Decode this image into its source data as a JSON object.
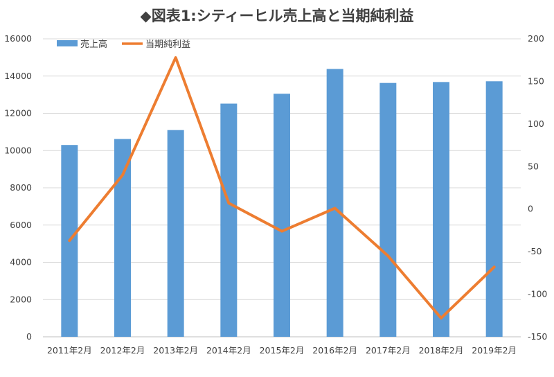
{
  "chart_data": {
    "type": "bar",
    "title": "◆図表1:シティーヒル売上高と当期純利益",
    "categories": [
      "2011年2月",
      "2012年2月",
      "2013年2月",
      "2014年2月",
      "2015年2月",
      "2016年2月",
      "2017年2月",
      "2018年2月",
      "2019年2月"
    ],
    "series": [
      {
        "name": "売上高",
        "type": "bar",
        "axis": "left",
        "color": "#5b9bd5",
        "values": [
          10300,
          10620,
          11100,
          12520,
          13050,
          14380,
          13630,
          13680,
          13720
        ]
      },
      {
        "name": "当期純利益",
        "type": "line",
        "axis": "right",
        "color": "#ed7d31",
        "values": [
          -37,
          40,
          178,
          7,
          -26,
          1,
          -55,
          -128,
          -68
        ]
      }
    ],
    "y_left": {
      "min": 0,
      "max": 16000,
      "step": 2000,
      "ticks": [
        "0",
        "2000",
        "4000",
        "6000",
        "8000",
        "10000",
        "12000",
        "14000",
        "16000"
      ]
    },
    "y_right": {
      "min": -150,
      "max": 200,
      "step": 50,
      "ticks": [
        "-150",
        "-100",
        "-50",
        "0",
        "50",
        "100",
        "150",
        "200"
      ]
    },
    "legend": {
      "position": "top-left",
      "items": [
        "売上高",
        "当期純利益"
      ]
    },
    "grid": true
  }
}
